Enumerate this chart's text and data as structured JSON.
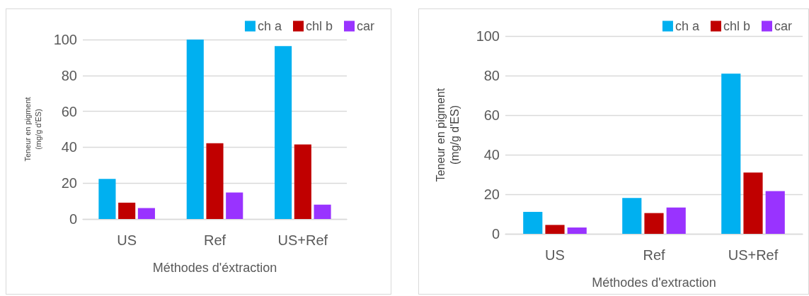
{
  "chart_data": [
    {
      "type": "bar",
      "xlabel": "Méthodes d'éxtraction",
      "ylabel": "Teneur en pigment\n(mg/g d'ES)",
      "categories": [
        "US",
        "Ref",
        "US+Ref"
      ],
      "series": [
        {
          "name": "ch a",
          "color": "#00b0f0",
          "values": [
            22.3,
            100,
            96.4
          ]
        },
        {
          "name": "chl b",
          "color": "#c00000",
          "values": [
            9.1,
            42.2,
            41.5
          ]
        },
        {
          "name": "car",
          "color": "#9933ff",
          "values": [
            6.1,
            14.8,
            8.0
          ]
        }
      ],
      "ylim": [
        0,
        100
      ],
      "yticks": [
        0,
        20,
        40,
        60,
        80,
        100
      ],
      "grid": "y",
      "legend": "top right"
    },
    {
      "type": "bar",
      "xlabel": "Méthodes d'extraction",
      "ylabel": "Teneur en pigment\n(mg/g d'ES)",
      "categories": [
        "US",
        "Ref",
        "US+Ref"
      ],
      "series": [
        {
          "name": "ch a",
          "color": "#00b0f0",
          "values": [
            11.1,
            18.1,
            81.0
          ]
        },
        {
          "name": "chl b",
          "color": "#c00000",
          "values": [
            4.5,
            10.5,
            31.0
          ]
        },
        {
          "name": "car",
          "color": "#9933ff",
          "values": [
            3.2,
            13.3,
            21.6
          ]
        }
      ],
      "ylim": [
        0,
        100
      ],
      "yticks": [
        0,
        20,
        40,
        60,
        80,
        100
      ],
      "grid": "y",
      "legend": "top right"
    }
  ]
}
